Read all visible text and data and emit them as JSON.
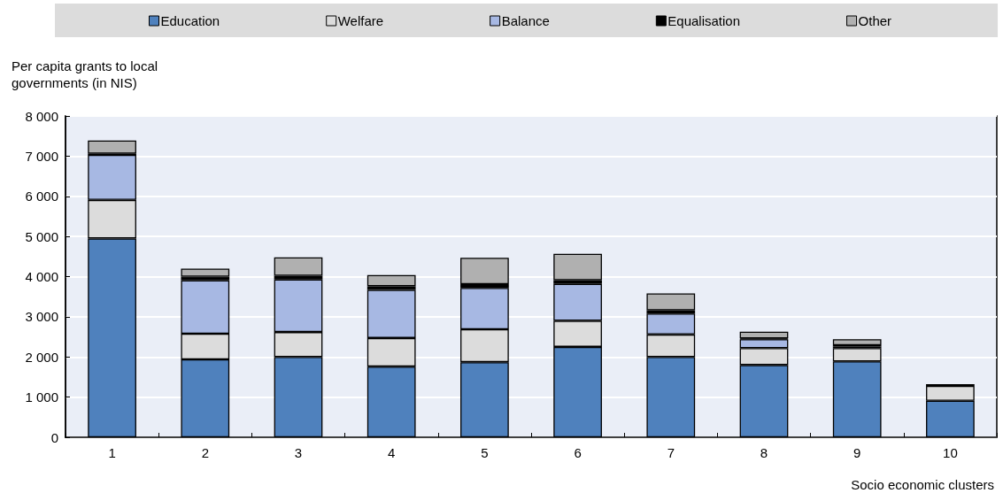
{
  "chart_data": {
    "type": "bar",
    "stacked": true,
    "ylabel": "Per capita grants to local governments (in NIS)",
    "xlabel": "Socio economic clusters",
    "categories": [
      "1",
      "2",
      "3",
      "4",
      "5",
      "6",
      "7",
      "8",
      "9",
      "10"
    ],
    "series": [
      {
        "name": "Education",
        "color": "#4f81bd",
        "values": [
          4950,
          1940,
          2000,
          1760,
          1870,
          2250,
          2000,
          1800,
          1890,
          910
        ]
      },
      {
        "name": "Welfare",
        "color": "#dcdcdc",
        "values": [
          960,
          640,
          620,
          710,
          820,
          650,
          560,
          420,
          330,
          370
        ]
      },
      {
        "name": "Balance",
        "color": "#a7b8e3",
        "values": [
          1120,
          1330,
          1310,
          1200,
          1030,
          920,
          520,
          220,
          40,
          0
        ]
      },
      {
        "name": "Equalisation",
        "color": "#000000",
        "values": [
          30,
          90,
          90,
          90,
          90,
          90,
          80,
          20,
          30,
          40
        ]
      },
      {
        "name": "Other",
        "color": "#b0b0b0",
        "values": [
          330,
          200,
          460,
          280,
          660,
          660,
          420,
          170,
          150,
          0
        ]
      }
    ],
    "ylim": [
      0,
      8000
    ],
    "yticks": [
      0,
      {
        "value": 1000,
        "label": "1 000"
      },
      {
        "value": 2000,
        "label": "2 000"
      },
      {
        "value": 3000,
        "label": "3 000"
      },
      {
        "value": 4000,
        "label": "4 000"
      },
      {
        "value": 5000,
        "label": "5 000"
      },
      {
        "value": 6000,
        "label": "6 000"
      },
      {
        "value": 7000,
        "label": "7 000"
      },
      {
        "value": 8000,
        "label": "8 000"
      }
    ],
    "grid": "y",
    "legend": "top"
  }
}
